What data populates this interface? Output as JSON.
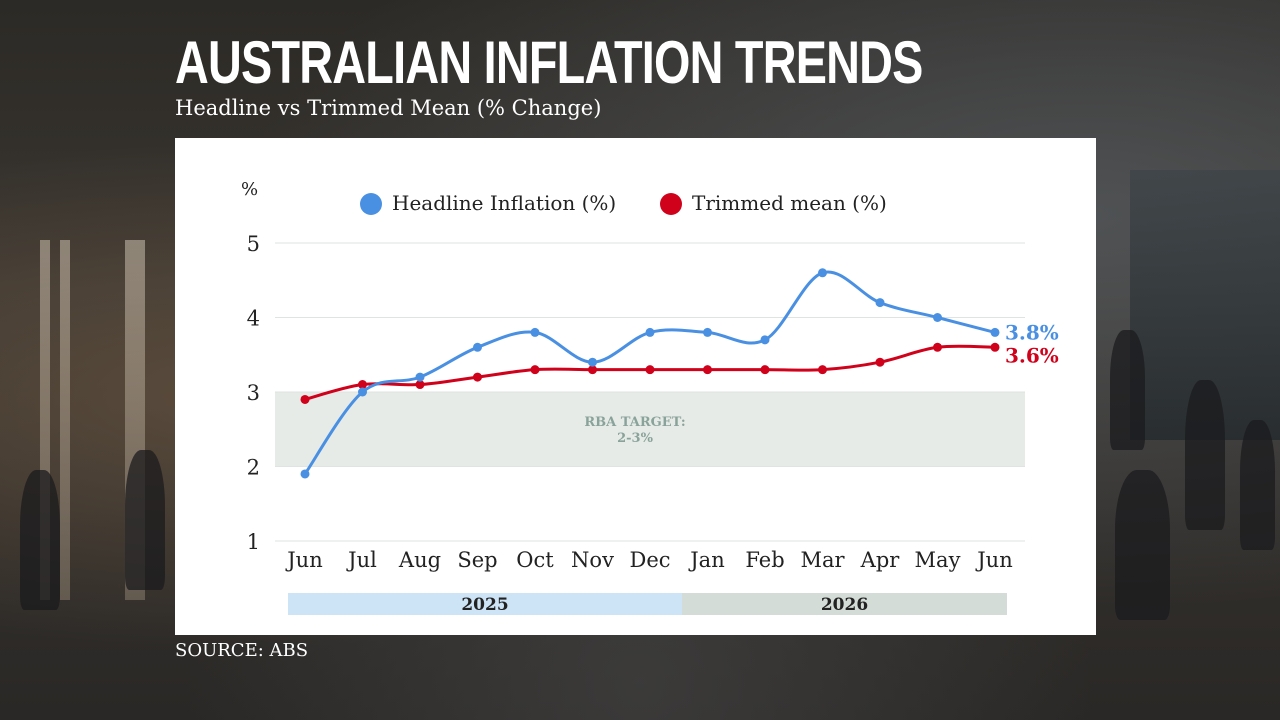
{
  "header": {
    "title": "AUSTRALIAN INFLATION TRENDS",
    "subtitle": "Headline vs Trimmed Mean (% Change)"
  },
  "footer": {
    "source": "SOURCE: ABS"
  },
  "chart_data": {
    "type": "line",
    "ylabel": "%",
    "ylim": [
      1,
      5
    ],
    "yticks": [
      1,
      2,
      3,
      4,
      5
    ],
    "categories": [
      "Jun",
      "Jul",
      "Aug",
      "Sep",
      "Oct",
      "Nov",
      "Dec",
      "Jan",
      "Feb",
      "Mar",
      "Apr",
      "May",
      "Jun"
    ],
    "series": [
      {
        "name": "Headline Inflation (%)",
        "color": "#4a90e2",
        "values": [
          1.9,
          3.0,
          3.2,
          3.6,
          3.8,
          3.4,
          3.8,
          3.8,
          3.7,
          4.6,
          4.2,
          4.0,
          3.8
        ],
        "end_label": "3.8%"
      },
      {
        "name": "Trimmed mean (%)",
        "color": "#d0021b",
        "values": [
          2.9,
          3.1,
          3.1,
          3.2,
          3.3,
          3.3,
          3.3,
          3.3,
          3.3,
          3.3,
          3.4,
          3.6,
          3.6
        ],
        "end_label": "3.6%"
      }
    ],
    "target_band": {
      "from": 2,
      "to": 3,
      "label_line1": "RBA TARGET:",
      "label_line2": "2-3%",
      "color": "#e6ebe8"
    },
    "year_bands": [
      {
        "label": "2025",
        "color": "#cde4f7"
      },
      {
        "label": "2026",
        "color": "#d4dcd7"
      }
    ],
    "legend_position": "top",
    "grid": true
  }
}
